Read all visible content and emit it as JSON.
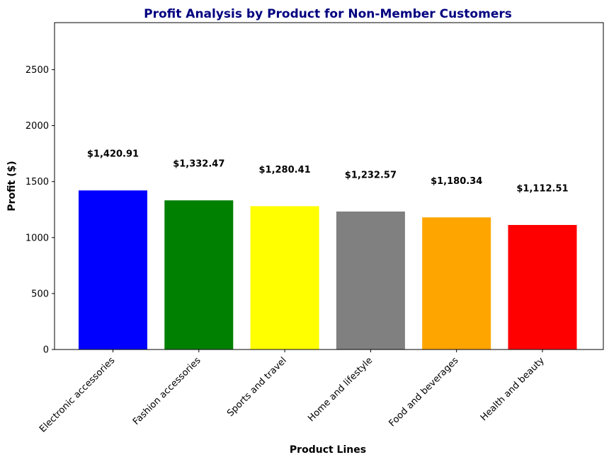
{
  "chart_data": {
    "type": "bar",
    "title": "Profit Analysis by Product for Non-Member Customers",
    "xlabel": "Product Lines",
    "ylabel": "Profit ($)",
    "categories": [
      "Electronic accessories",
      "Fashion accessories",
      "Sports and travel",
      "Home and lifestyle",
      "Food and beverages",
      "Health and beauty"
    ],
    "values": [
      1420.91,
      1332.47,
      1280.41,
      1232.57,
      1180.34,
      1112.51
    ],
    "data_labels": [
      "$1,420.91",
      "$1,332.47",
      "$1,280.41",
      "$1,232.57",
      "$1,180.34",
      "$1,112.51"
    ],
    "colors": [
      "#0000ff",
      "#008000",
      "#ffff00",
      "#808080",
      "#ffa500",
      "#ff0000"
    ],
    "ylim": [
      0,
      2920
    ],
    "yticks": [
      0,
      500,
      1000,
      1500,
      2000,
      2500
    ],
    "grid": false,
    "legend": "none"
  }
}
